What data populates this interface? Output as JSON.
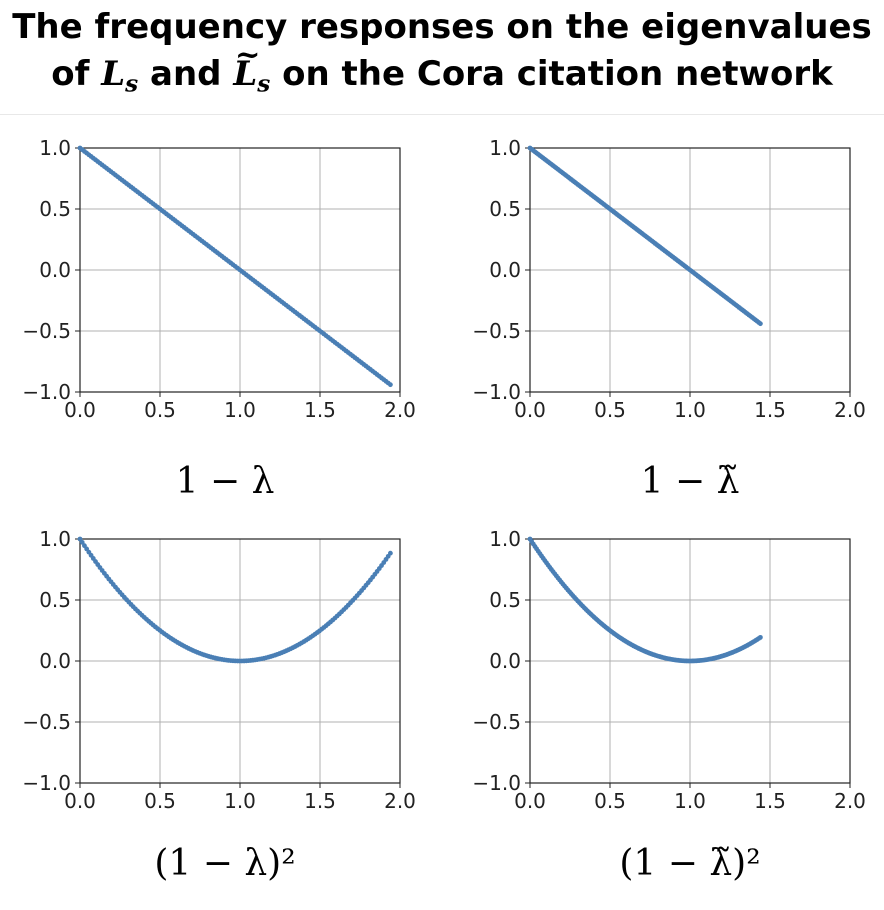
{
  "title": {
    "line1": "The frequency responses on the eigenvalues",
    "line2_prefix": "of ",
    "sym1": "L",
    "sym1_sub": "s",
    "and_text": " and ",
    "sym2": "L",
    "sym2_sub": "s",
    "tilde": "~",
    "line2_suffix": " on the Cora citation network"
  },
  "chart_data": [
    {
      "type": "scatter",
      "xlabel": "1 − λ",
      "x_range": [
        0.0,
        1.94
      ],
      "function": "1 - x",
      "xlim": [
        0.0,
        2.0
      ],
      "ylim": [
        -1.0,
        1.0
      ],
      "xticks": [
        "0.0",
        "0.5",
        "1.0",
        "1.5",
        "2.0"
      ],
      "yticks": [
        "1.0",
        "0.5",
        "0.0",
        "−0.5",
        "−1.0"
      ],
      "grid": true,
      "color": "#4a7fb5"
    },
    {
      "type": "scatter",
      "xlabel": "1 − λ̃",
      "x_range": [
        0.0,
        1.44
      ],
      "function": "1 - x",
      "xlim": [
        0.0,
        2.0
      ],
      "ylim": [
        -1.0,
        1.0
      ],
      "xticks": [
        "0.0",
        "0.5",
        "1.0",
        "1.5",
        "2.0"
      ],
      "yticks": [
        "1.0",
        "0.5",
        "0.0",
        "−0.5",
        "−1.0"
      ],
      "grid": true,
      "color": "#4a7fb5"
    },
    {
      "type": "scatter",
      "xlabel": "(1 − λ)²",
      "x_range": [
        0.0,
        1.94
      ],
      "function": "(1 - x)^2",
      "xlim": [
        0.0,
        2.0
      ],
      "ylim": [
        -1.0,
        1.0
      ],
      "xticks": [
        "0.0",
        "0.5",
        "1.0",
        "1.5",
        "2.0"
      ],
      "yticks": [
        "1.0",
        "0.5",
        "0.0",
        "−0.5",
        "−1.0"
      ],
      "grid": true,
      "color": "#4a7fb5"
    },
    {
      "type": "scatter",
      "xlabel": "(1 − λ̃)²",
      "x_range": [
        0.0,
        1.44
      ],
      "function": "(1 - x)^2",
      "xlim": [
        0.0,
        2.0
      ],
      "ylim": [
        -1.0,
        1.0
      ],
      "xticks": [
        "0.0",
        "0.5",
        "1.0",
        "1.5",
        "2.0"
      ],
      "yticks": [
        "1.0",
        "0.5",
        "0.0",
        "−0.5",
        "−1.0"
      ],
      "grid": true,
      "color": "#4a7fb5"
    }
  ]
}
